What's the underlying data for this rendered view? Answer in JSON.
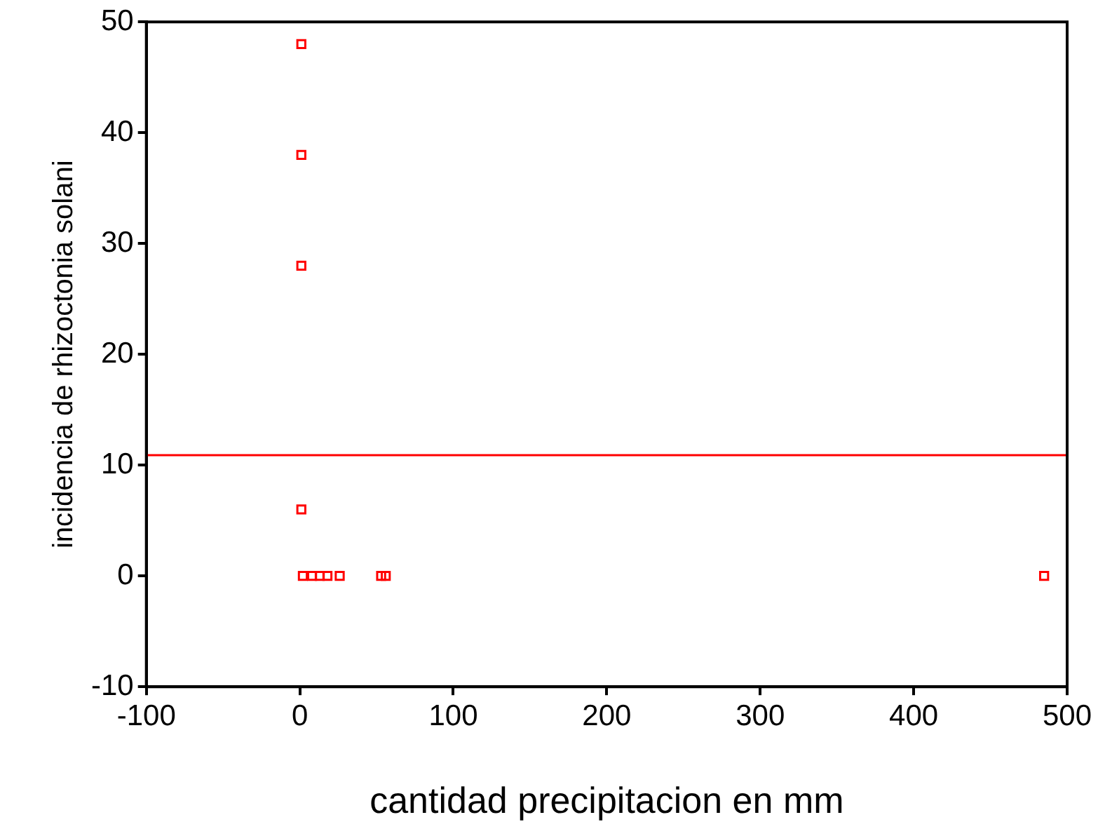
{
  "chart_data": {
    "type": "scatter",
    "xlabel": "cantidad precipitacion en mm",
    "ylabel": "incidencia de rhizoctonia solani",
    "x": [
      1,
      1,
      1,
      1,
      2,
      8,
      13,
      18,
      26,
      53,
      56,
      485
    ],
    "values": [
      48,
      38,
      28,
      6,
      0,
      0,
      0,
      0,
      0,
      0,
      0,
      0
    ],
    "color": "#ff0000",
    "marker": "square",
    "xlim": [
      -100,
      500
    ],
    "xticks": [
      -100,
      0,
      100,
      200,
      300,
      400,
      500
    ],
    "ylim": [
      -10,
      50
    ],
    "yticks": [
      -10,
      0,
      10,
      20,
      30,
      40,
      50
    ],
    "ref_lines": [
      {
        "axis": "y",
        "value": 10.9,
        "color": "#ff0000"
      }
    ],
    "grid": false,
    "legend": false
  }
}
